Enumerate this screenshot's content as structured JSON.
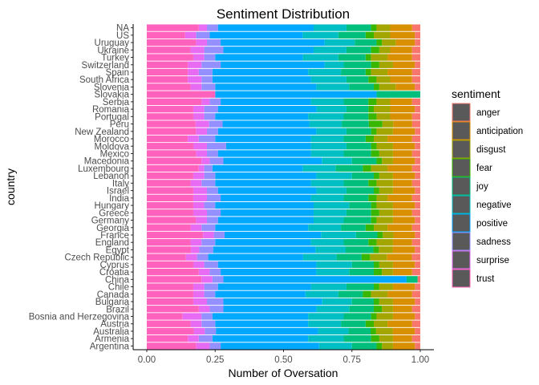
{
  "chart_data": {
    "type": "bar",
    "orientation": "horizontal",
    "stacked": "fill",
    "title": "Sentiment Distribution",
    "xlabel": "Number of Oversation",
    "ylabel": "country",
    "xlim": [
      0,
      1
    ],
    "x_ticks": [
      "0.00",
      "0.25",
      "0.50",
      "0.75",
      "1.00"
    ],
    "x_tick_values": [
      0,
      0.25,
      0.5,
      0.75,
      1
    ],
    "grid": false,
    "legend": {
      "title": "sentiment",
      "position": "right"
    },
    "categories": [
      "NA",
      "US",
      "Uruguay",
      "Ukraine",
      "Turkey",
      "Switzerland",
      "Spain",
      "South Africa",
      "Slovenia",
      "Slovakia",
      "Serbia",
      "Romania",
      "Portugal",
      "Peru",
      "New Zealand",
      "Morocco",
      "Moldova",
      "Mexico",
      "Macedonia",
      "Luxembourg",
      "Lebanon",
      "Italy",
      "Israel",
      "India",
      "Hungary",
      "Greece",
      "Germany",
      "Georgia",
      "France",
      "England",
      "Egypt",
      "Czech Republic",
      "Cyprus",
      "Croatia",
      "China",
      "Chile",
      "Canada",
      "Bulgaria",
      "Brazil",
      "Bosnia and Herzegovina",
      "Austria",
      "Australia",
      "Armenia",
      "Argentina"
    ],
    "series": [
      {
        "name": "anger",
        "color": "#F8766D",
        "values": [
          0.03,
          0.02,
          0.02,
          0.03,
          0.03,
          0.02,
          0.03,
          0.03,
          0.02,
          0.0,
          0.03,
          0.02,
          0.03,
          0.03,
          0.02,
          0.03,
          0.02,
          0.03,
          0.02,
          0.03,
          0.02,
          0.03,
          0.02,
          0.03,
          0.02,
          0.03,
          0.02,
          0.03,
          0.02,
          0.03,
          0.02,
          0.03,
          0.02,
          0.03,
          0.01,
          0.02,
          0.03,
          0.02,
          0.03,
          0.02,
          0.03,
          0.02,
          0.03,
          0.02
        ]
      },
      {
        "name": "anticipation",
        "color": "#D89000",
        "values": [
          0.08,
          0.09,
          0.07,
          0.08,
          0.09,
          0.08,
          0.09,
          0.08,
          0.07,
          0.0,
          0.08,
          0.09,
          0.08,
          0.07,
          0.08,
          0.09,
          0.08,
          0.07,
          0.08,
          0.09,
          0.08,
          0.07,
          0.08,
          0.09,
          0.08,
          0.07,
          0.08,
          0.09,
          0.08,
          0.07,
          0.08,
          0.09,
          0.08,
          0.07,
          0.0,
          0.08,
          0.09,
          0.08,
          0.07,
          0.08,
          0.09,
          0.08,
          0.07,
          0.08
        ]
      },
      {
        "name": "disgust",
        "color": "#A3A500",
        "values": [
          0.05,
          0.06,
          0.05,
          0.04,
          0.06,
          0.05,
          0.06,
          0.05,
          0.06,
          0.0,
          0.05,
          0.06,
          0.05,
          0.04,
          0.06,
          0.05,
          0.06,
          0.05,
          0.04,
          0.06,
          0.05,
          0.06,
          0.05,
          0.04,
          0.06,
          0.05,
          0.06,
          0.05,
          0.04,
          0.06,
          0.05,
          0.06,
          0.05,
          0.04,
          0.0,
          0.05,
          0.06,
          0.05,
          0.04,
          0.06,
          0.05,
          0.06,
          0.05,
          0.04
        ]
      },
      {
        "name": "fear",
        "color": "#39B600",
        "values": [
          0.02,
          0.03,
          0.02,
          0.03,
          0.02,
          0.03,
          0.02,
          0.03,
          0.02,
          0.0,
          0.03,
          0.02,
          0.03,
          0.05,
          0.02,
          0.03,
          0.02,
          0.03,
          0.02,
          0.03,
          0.02,
          0.03,
          0.02,
          0.03,
          0.02,
          0.03,
          0.02,
          0.03,
          0.02,
          0.03,
          0.02,
          0.03,
          0.02,
          0.03,
          0.0,
          0.02,
          0.03,
          0.02,
          0.03,
          0.02,
          0.03,
          0.02,
          0.03,
          0.02
        ]
      },
      {
        "name": "joy",
        "color": "#00BF7D",
        "values": [
          0.09,
          0.1,
          0.08,
          0.09,
          0.1,
          0.1,
          0.09,
          0.08,
          0.09,
          0.16,
          0.09,
          0.08,
          0.09,
          0.1,
          0.09,
          0.08,
          0.09,
          0.1,
          0.09,
          0.1,
          0.08,
          0.09,
          0.1,
          0.09,
          0.08,
          0.09,
          0.1,
          0.09,
          0.08,
          0.09,
          0.1,
          0.09,
          0.08,
          0.09,
          0.04,
          0.1,
          0.09,
          0.08,
          0.09,
          0.1,
          0.09,
          0.08,
          0.1,
          0.09
        ]
      },
      {
        "name": "negative",
        "color": "#00BFC4",
        "values": [
          0.12,
          0.13,
          0.11,
          0.12,
          0.13,
          0.07,
          0.12,
          0.13,
          0.12,
          0.0,
          0.12,
          0.11,
          0.13,
          0.12,
          0.11,
          0.12,
          0.13,
          0.12,
          0.11,
          0.12,
          0.13,
          0.12,
          0.11,
          0.12,
          0.13,
          0.12,
          0.11,
          0.12,
          0.13,
          0.12,
          0.11,
          0.12,
          0.13,
          0.12,
          0.0,
          0.13,
          0.12,
          0.11,
          0.12,
          0.13,
          0.12,
          0.11,
          0.13,
          0.12
        ]
      },
      {
        "name": "positive",
        "color": "#00A9FF",
        "values": [
          0.35,
          0.34,
          0.38,
          0.33,
          0.32,
          0.38,
          0.35,
          0.36,
          0.37,
          0.59,
          0.33,
          0.36,
          0.34,
          0.32,
          0.36,
          0.35,
          0.31,
          0.34,
          0.36,
          0.33,
          0.37,
          0.35,
          0.36,
          0.33,
          0.36,
          0.34,
          0.35,
          0.34,
          0.36,
          0.35,
          0.37,
          0.34,
          0.36,
          0.35,
          0.67,
          0.34,
          0.33,
          0.36,
          0.34,
          0.35,
          0.34,
          0.37,
          0.35,
          0.36
        ]
      },
      {
        "name": "sadness",
        "color": "#9590FF",
        "values": [
          0.04,
          0.05,
          0.05,
          0.07,
          0.04,
          0.07,
          0.05,
          0.04,
          0.05,
          0.0,
          0.04,
          0.05,
          0.04,
          0.05,
          0.04,
          0.06,
          0.07,
          0.04,
          0.05,
          0.03,
          0.04,
          0.05,
          0.04,
          0.05,
          0.04,
          0.05,
          0.04,
          0.05,
          0.04,
          0.05,
          0.05,
          0.04,
          0.05,
          0.04,
          0.04,
          0.05,
          0.04,
          0.06,
          0.05,
          0.04,
          0.05,
          0.04,
          0.05,
          0.04
        ]
      },
      {
        "name": "surprise",
        "color": "#E76BF3",
        "values": [
          0.03,
          0.04,
          0.04,
          0.05,
          0.04,
          0.05,
          0.04,
          0.05,
          0.04,
          0.0,
          0.03,
          0.04,
          0.04,
          0.05,
          0.04,
          0.04,
          0.05,
          0.04,
          0.03,
          0.02,
          0.04,
          0.04,
          0.05,
          0.05,
          0.04,
          0.05,
          0.04,
          0.04,
          0.04,
          0.04,
          0.03,
          0.04,
          0.04,
          0.04,
          0.04,
          0.04,
          0.04,
          0.05,
          0.04,
          0.07,
          0.04,
          0.04,
          0.04,
          0.05
        ]
      },
      {
        "name": "trust",
        "color": "#FF62BC",
        "values": [
          0.19,
          0.14,
          0.18,
          0.16,
          0.17,
          0.15,
          0.15,
          0.15,
          0.16,
          0.25,
          0.2,
          0.17,
          0.17,
          0.18,
          0.18,
          0.15,
          0.17,
          0.18,
          0.2,
          0.19,
          0.17,
          0.16,
          0.17,
          0.17,
          0.17,
          0.17,
          0.18,
          0.16,
          0.21,
          0.16,
          0.16,
          0.14,
          0.17,
          0.19,
          0.2,
          0.17,
          0.17,
          0.17,
          0.19,
          0.13,
          0.16,
          0.17,
          0.15,
          0.18
        ]
      }
    ]
  }
}
